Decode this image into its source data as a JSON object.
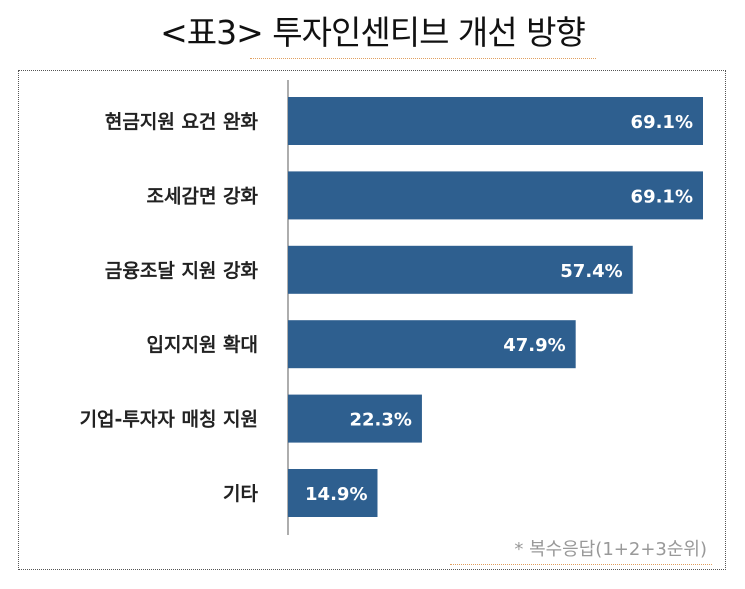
{
  "title": "<표3> 투자인센티브 개선 방향",
  "footnote": "* 복수응답(1+2+3순위)",
  "chart_data": {
    "type": "bar",
    "orientation": "horizontal",
    "categories": [
      "현금지원 요건 완화",
      "조세감면 강화",
      "금융조달 지원 강화",
      "입지지원 확대",
      "기업-투자자 매칭 지원",
      "기타"
    ],
    "values": [
      69.1,
      69.1,
      57.4,
      47.9,
      22.3,
      14.9
    ],
    "value_labels": [
      "69.1%",
      "69.1%",
      "57.4%",
      "47.9%",
      "22.3%",
      "14.9%"
    ],
    "unit": "%",
    "xlim": [
      0,
      69.1
    ],
    "grid": false,
    "bar_color": "#2e5f8f",
    "label_color": "#ffffff"
  }
}
